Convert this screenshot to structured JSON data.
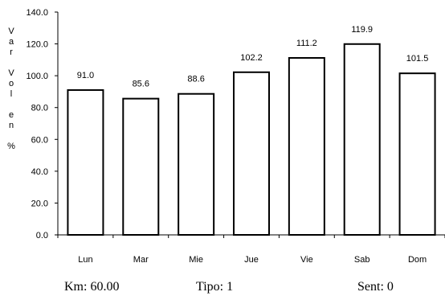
{
  "chart_data": {
    "type": "bar",
    "categories": [
      "Lun",
      "Mar",
      "Mie",
      "Jue",
      "Vie",
      "Sab",
      "Dom"
    ],
    "values": [
      91.0,
      85.6,
      88.6,
      102.2,
      111.2,
      119.9,
      101.5
    ],
    "data_labels": [
      "91.0",
      "85.6",
      "88.6",
      "102.2",
      "111.2",
      "119.9",
      "101.5"
    ],
    "ylabel": "Var Vol en %",
    "ylim": [
      0,
      140
    ],
    "yticks": [
      "0.0",
      "20.0",
      "40.0",
      "60.0",
      "80.0",
      "100.0",
      "120.0",
      "140.0"
    ],
    "grid": false,
    "bar_fill": "#ffffff",
    "bar_stroke": "#000000"
  },
  "footer": {
    "km": "Km: 60.00",
    "tipo": "Tipo: 1",
    "sent": "Sent: 0"
  }
}
